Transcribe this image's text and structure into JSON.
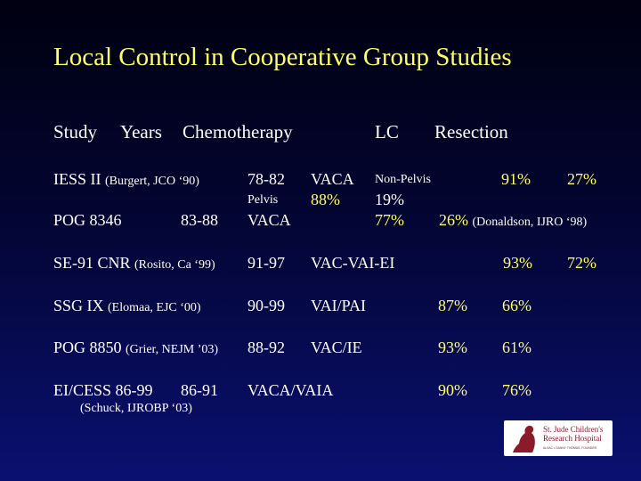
{
  "title": "Local Control in Cooperative Group Studies",
  "header": {
    "study": "Study",
    "years": "Years",
    "chemo": "Chemotherapy",
    "lc": "LC",
    "resection": "Resection"
  },
  "rows": {
    "iess": {
      "study": "IESS II",
      "citation": "(Burgert, JCO ‘90)",
      "years": "78-82",
      "chemo": "VACA",
      "site": "Non-Pelvis",
      "lc": "91%",
      "resection": "27%"
    },
    "pelvis": {
      "site": "Pelvis",
      "lc": "88%"
    },
    "pog8346": {
      "study": "POG 8346",
      "years": "83-88",
      "chemo": "VACA",
      "lc_a": "19%",
      "lc_b": "77%",
      "resection": "26%",
      "citation": "(Donaldson, IJRO ‘98)"
    },
    "se91": {
      "study": "SE-91 CNR",
      "citation": "(Rosito, Ca ‘99)",
      "years": "91-97",
      "chemo": "VAC-VAI-EI",
      "lc": "93%",
      "resection": "72%"
    },
    "ssg": {
      "study": "SSG IX",
      "citation": "(Elomaa, EJC ‘00)",
      "years": "90-99",
      "chemo": "VAI/PAI",
      "lc": "87%",
      "resection": "66%"
    },
    "pog8850": {
      "study": "POG 8850",
      "citation": "(Grier, NEJM ’03)",
      "years": "88-92",
      "chemo": "VAC/IE",
      "lc": "93%",
      "resection": "61%"
    },
    "eicess": {
      "study": "EI/CESS 86-99",
      "years": "86-91",
      "chemo": "VACA/VAIA",
      "lc": "90%",
      "resection": "76%",
      "citation": "(Schuck, IJROBP ‘03)"
    }
  },
  "logo": {
    "line1": "St. Jude Children's",
    "line2": "Research Hospital",
    "tagline": "ALSAC • DANNY THOMAS, FOUNDER"
  },
  "colors": {
    "accent": "#ffff66",
    "text": "#ffffff",
    "logo_red": "#8b1a2b"
  }
}
